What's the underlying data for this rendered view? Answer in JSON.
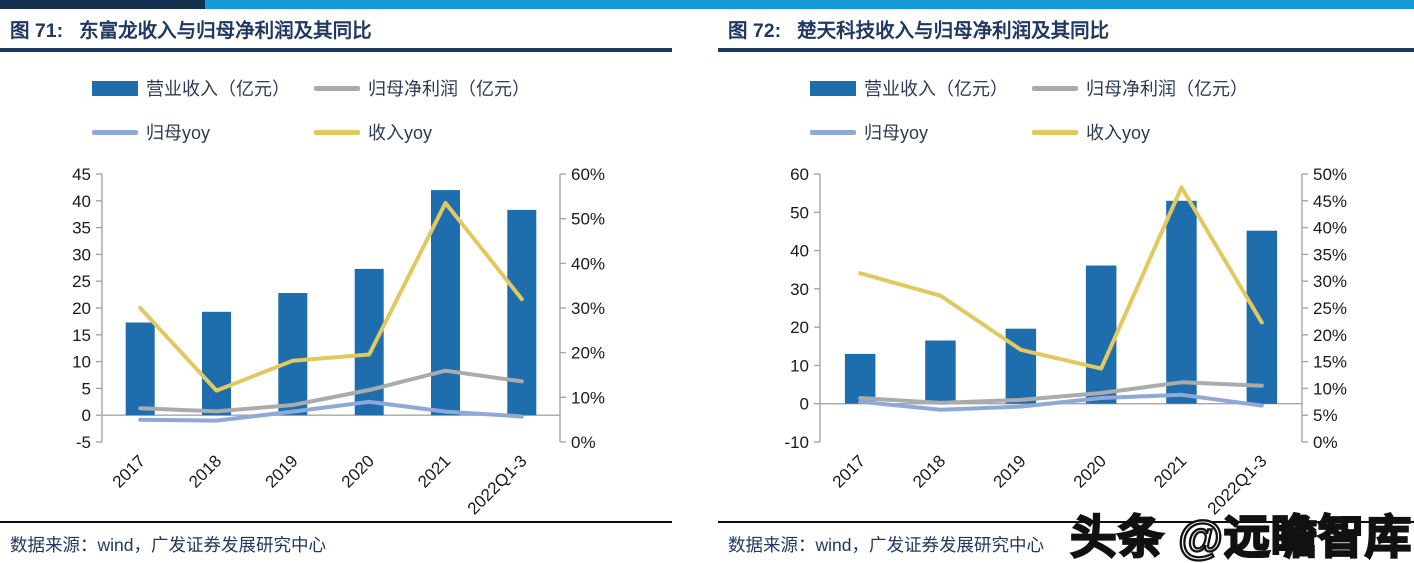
{
  "watermark": {
    "text": "头条 @远瞻智库"
  },
  "colors": {
    "strip_cyan": "#189AD7",
    "strip_navy": "#14304F",
    "title_navy": "#1F3864",
    "axis_gray": "#A6A6A6",
    "bar_blue": "#1E6EAE",
    "profit_gray": "#ABABAB",
    "parent_yoy_blue": "#8FA8D8",
    "revenue_yoy_yellow": "#E3C860"
  },
  "chart_data": [
    {
      "type": "combo",
      "fig_label": "图 71:",
      "title": "东富龙收入与归母净利润及其同比",
      "categories": [
        "2017",
        "2018",
        "2019",
        "2020",
        "2021",
        "2022Q1-3"
      ],
      "series": [
        {
          "name": "营业收入（亿元）",
          "kind": "bar",
          "axis": "left",
          "color": "#1E6EAE",
          "values": [
            17.3,
            19.3,
            22.8,
            27.3,
            42.0,
            38.3
          ]
        },
        {
          "name": "归母净利润（亿元）",
          "kind": "line",
          "axis": "left",
          "color": "#ABABAB",
          "values": [
            1.3,
            0.7,
            1.9,
            4.7,
            8.3,
            6.3
          ]
        },
        {
          "name": "归母yoy",
          "kind": "line",
          "axis": "right",
          "color": "#8FA8D8",
          "values": [
            5.0,
            4.8,
            6.8,
            9.0,
            6.8,
            5.7
          ]
        },
        {
          "name": "收入yoy",
          "kind": "line",
          "axis": "right",
          "color": "#E3C860",
          "values": [
            30.0,
            11.5,
            18.2,
            19.6,
            53.5,
            32.0
          ]
        }
      ],
      "left_axis": {
        "min": -5,
        "max": 45,
        "step": 5,
        "suffix": ""
      },
      "right_axis": {
        "min": 0,
        "max": 60,
        "step": 10,
        "suffix": "%"
      },
      "legend_position": "top",
      "grid": "zero-line-only",
      "source": "数据来源：wind，广发证券发展研究中心"
    },
    {
      "type": "combo",
      "fig_label": "图 72:",
      "title": "楚天科技收入与归母净利润及其同比",
      "categories": [
        "2017",
        "2018",
        "2019",
        "2020",
        "2021",
        "2022Q1-3"
      ],
      "series": [
        {
          "name": "营业收入（亿元）",
          "kind": "bar",
          "axis": "left",
          "color": "#1E6EAE",
          "values": [
            13.0,
            16.5,
            19.6,
            36.1,
            53.0,
            45.2
          ]
        },
        {
          "name": "归母净利润（亿元）",
          "kind": "line",
          "axis": "left",
          "color": "#ABABAB",
          "values": [
            1.5,
            0.2,
            1.0,
            2.8,
            5.6,
            4.7
          ]
        },
        {
          "name": "归母yoy",
          "kind": "line",
          "axis": "right",
          "color": "#8FA8D8",
          "values": [
            7.5,
            6.0,
            6.6,
            8.2,
            8.8,
            6.8
          ]
        },
        {
          "name": "收入yoy",
          "kind": "line",
          "axis": "right",
          "color": "#E3C860",
          "values": [
            31.5,
            27.3,
            17.2,
            13.7,
            47.5,
            22.3
          ]
        }
      ],
      "left_axis": {
        "min": -10,
        "max": 60,
        "step": 10,
        "suffix": ""
      },
      "right_axis": {
        "min": 0,
        "max": 50,
        "step": 5,
        "suffix": "%"
      },
      "legend_position": "top",
      "grid": "zero-line-only",
      "source": "数据来源：wind，广发证券发展研究中心"
    }
  ]
}
